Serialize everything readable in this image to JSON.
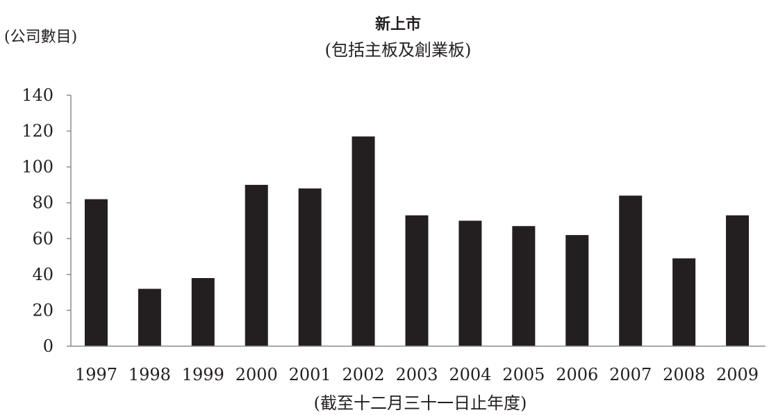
{
  "chart_data": {
    "type": "bar",
    "title": "新上市",
    "subtitle": "(包括主板及創業板)",
    "ylabel": "(公司數目)",
    "xlabel": "(截至十二月三十一日止年度)",
    "categories": [
      "1997",
      "1998",
      "1999",
      "2000",
      "2001",
      "2002",
      "2003",
      "2004",
      "2005",
      "2006",
      "2007",
      "2008",
      "2009"
    ],
    "values": [
      82,
      32,
      38,
      90,
      88,
      117,
      73,
      70,
      67,
      62,
      84,
      49,
      73
    ],
    "ylim": [
      0,
      140
    ],
    "yticks": [
      0,
      20,
      40,
      60,
      80,
      100,
      120,
      140
    ],
    "grid": false,
    "bar_color": "#231f20",
    "axis_color": "#8c8c8c"
  }
}
